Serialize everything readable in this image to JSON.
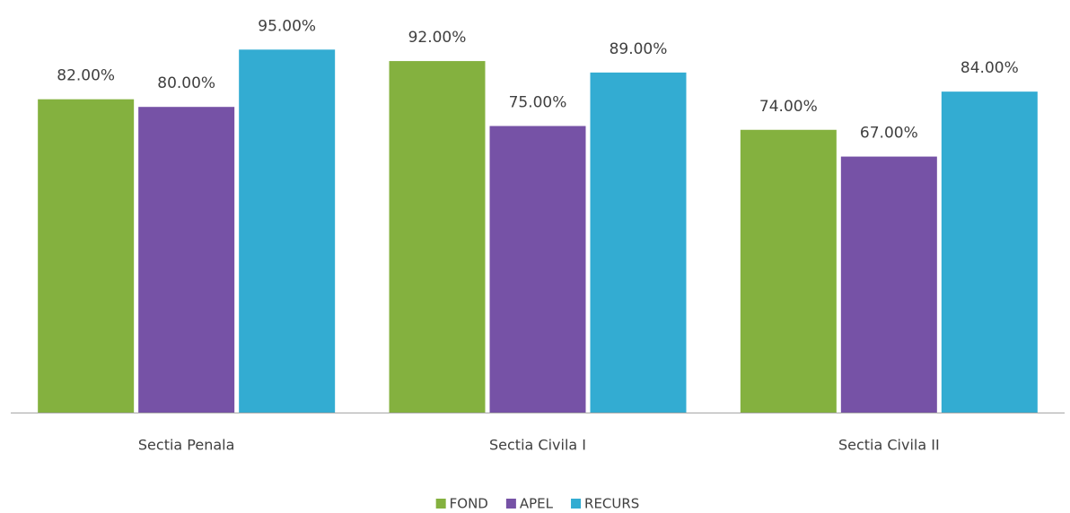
{
  "chart_data": {
    "type": "bar",
    "categories": [
      "Sectia Penala",
      "Sectia Civila I",
      "Sectia Civila II"
    ],
    "series": [
      {
        "name": "FOND",
        "color": "#84b13f",
        "values": [
          82,
          92,
          74
        ],
        "value_labels": [
          "82.00%",
          "92.00%",
          "74.00%"
        ]
      },
      {
        "name": "APEL",
        "color": "#7652a6",
        "values": [
          80,
          75,
          67
        ],
        "value_labels": [
          "80.00%",
          "75.00%",
          "67.00%"
        ]
      },
      {
        "name": "RECURS",
        "color": "#33acd2",
        "values": [
          95,
          89,
          84
        ],
        "value_labels": [
          "95.00%",
          "89.00%",
          "84.00%"
        ]
      }
    ],
    "legend": "bottom"
  }
}
